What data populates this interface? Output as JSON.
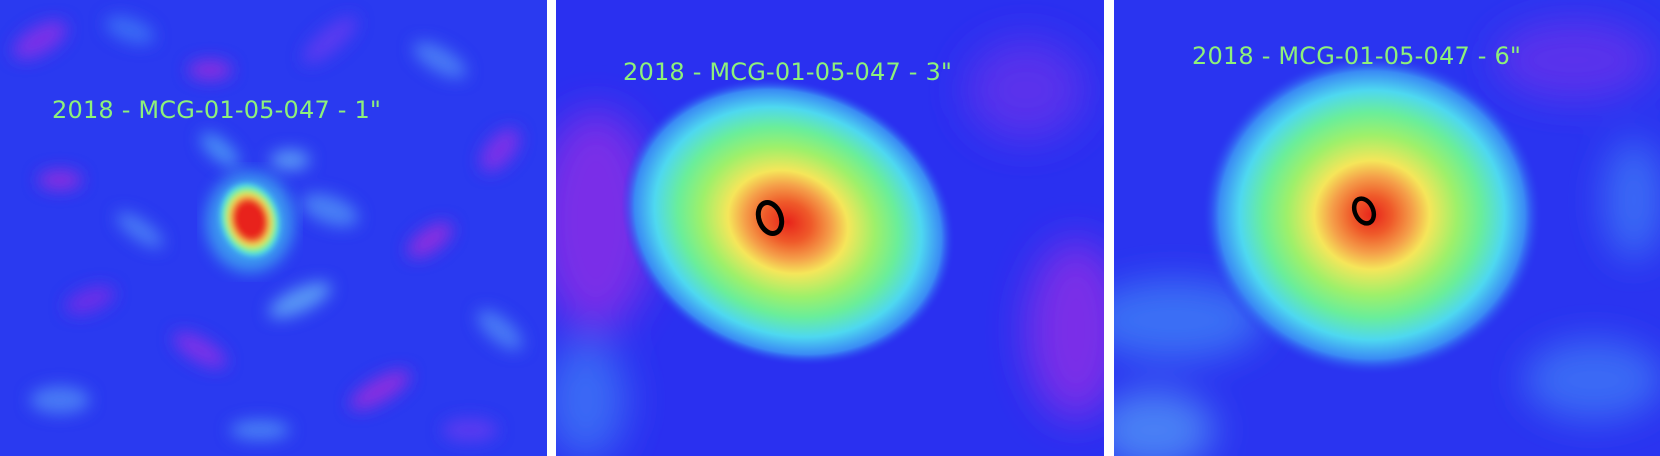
{
  "panels": [
    {
      "label": "2018 - MCG-01-05-047 - 1\"",
      "resolution": "1\"",
      "source": "MCG-01-05-047",
      "year": "2018"
    },
    {
      "label": "2018 - MCG-01-05-047 - 3\"",
      "resolution": "3\"",
      "source": "MCG-01-05-047",
      "year": "2018"
    },
    {
      "label": "2018 - MCG-01-05-047 - 6\"",
      "resolution": "6\"",
      "source": "MCG-01-05-047",
      "year": "2018"
    }
  ],
  "colors": {
    "background_blue": "#1a2ef0",
    "background_violet": "#6a2ef0",
    "cyan": "#4ee8f0",
    "green": "#7ef07a",
    "yellow": "#f5e65a",
    "orange": "#f07a3a",
    "red": "#e8241a",
    "contour": "#000000",
    "label_text": "#8ef07a"
  }
}
